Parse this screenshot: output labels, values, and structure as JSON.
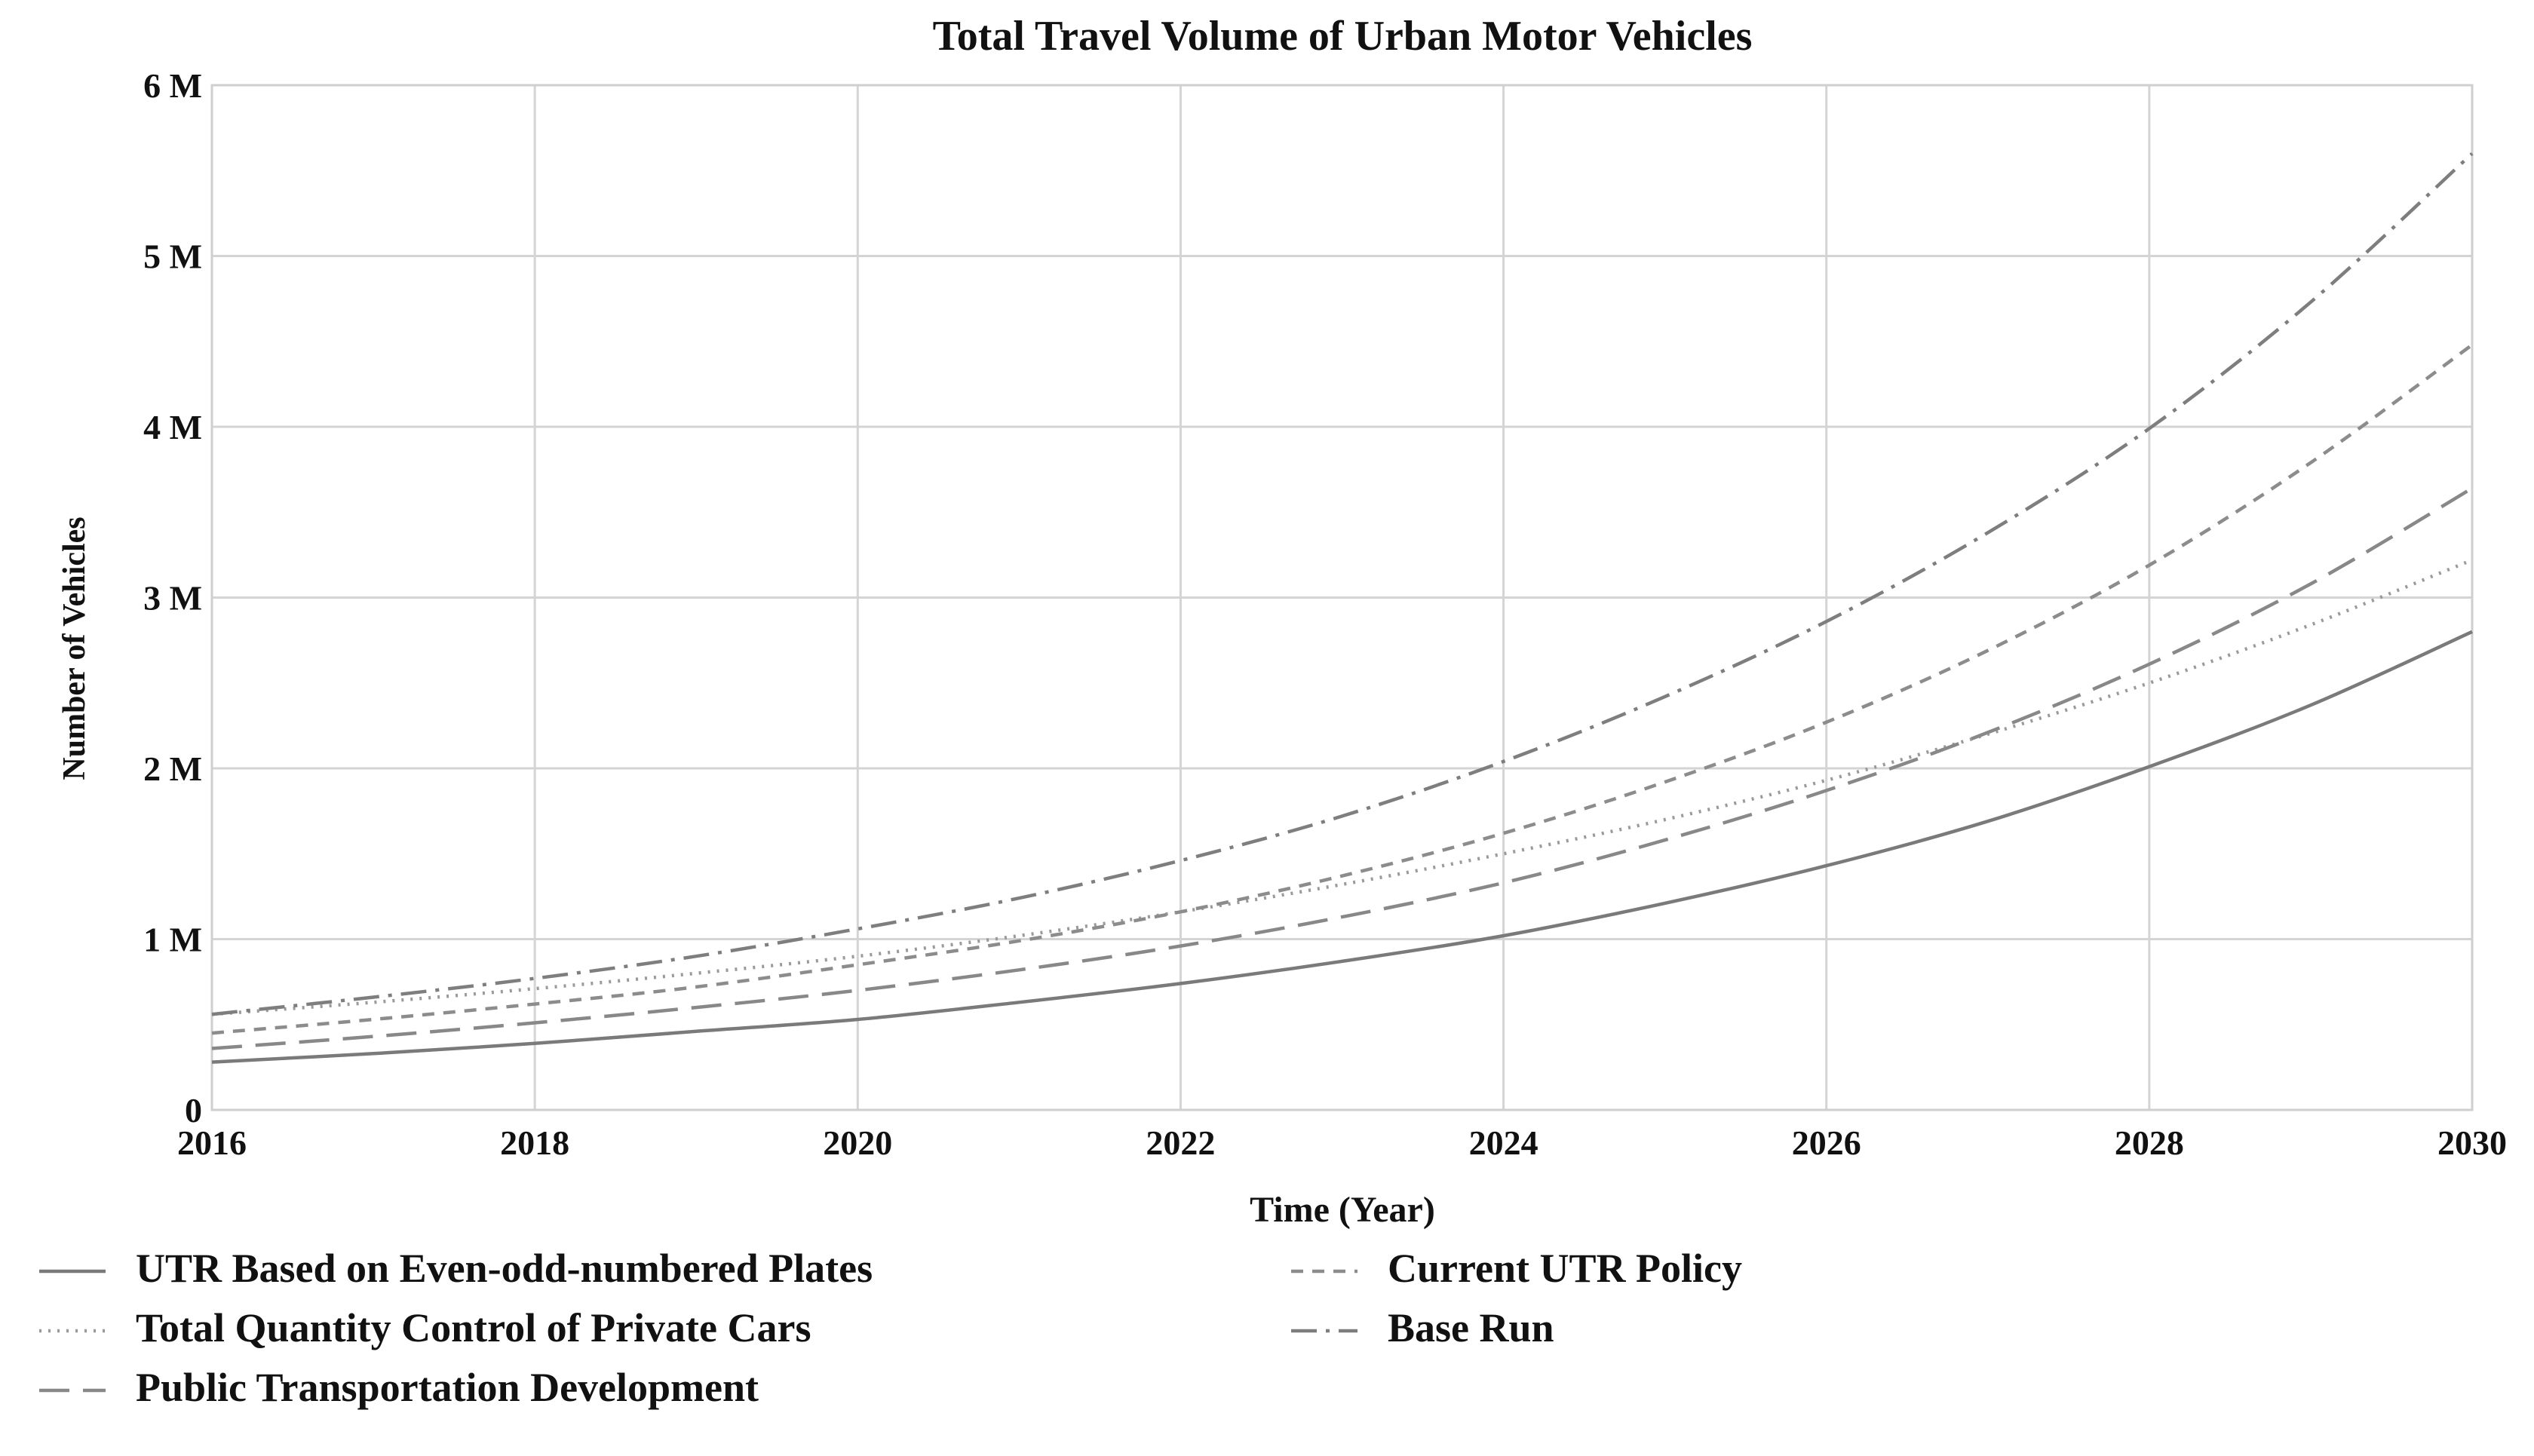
{
  "chart_data": {
    "type": "line",
    "title": "Total Travel Volume of Urban Motor Vehicles",
    "xlabel": "Time (Year)",
    "ylabel": "Number of Vehicles",
    "xlim": [
      2016,
      2030
    ],
    "ylim": [
      0,
      6
    ],
    "x_ticks": [
      2016,
      2018,
      2020,
      2022,
      2024,
      2026,
      2028,
      2030
    ],
    "y_ticks": [
      0,
      1,
      2,
      3,
      4,
      5,
      6
    ],
    "y_tick_labels": [
      "0",
      "1 M",
      "2 M",
      "3 M",
      "4 M",
      "5 M",
      "6 M"
    ],
    "grid": true,
    "x": [
      2016,
      2017,
      2018,
      2019,
      2020,
      2021,
      2022,
      2023,
      2024,
      2025,
      2026,
      2027,
      2028,
      2029,
      2030
    ],
    "series": [
      {
        "name": "UTR Based on Even-odd-numbered Plates",
        "style": "solid",
        "color": "#7a7a7a",
        "values": [
          0.28,
          0.33,
          0.39,
          0.46,
          0.53,
          0.63,
          0.74,
          0.87,
          1.02,
          1.21,
          1.43,
          1.69,
          2.01,
          2.37,
          2.8
        ]
      },
      {
        "name": "Total Quantity Control of Private Cars",
        "style": "dotted",
        "color": "#9a9a9a",
        "values": [
          0.56,
          0.63,
          0.71,
          0.8,
          0.9,
          1.02,
          1.16,
          1.32,
          1.5,
          1.7,
          1.93,
          2.2,
          2.5,
          2.84,
          3.22
        ]
      },
      {
        "name": "Public Transportation Development",
        "style": "long-dash",
        "color": "#888888",
        "values": [
          0.36,
          0.43,
          0.51,
          0.6,
          0.7,
          0.82,
          0.96,
          1.13,
          1.33,
          1.58,
          1.87,
          2.21,
          2.61,
          3.08,
          3.64
        ]
      },
      {
        "name": "Current UTR Policy",
        "style": "short-dash",
        "color": "#8c8c8c",
        "values": [
          0.45,
          0.53,
          0.62,
          0.72,
          0.85,
          0.99,
          1.16,
          1.37,
          1.62,
          1.92,
          2.27,
          2.69,
          3.19,
          3.79,
          4.48
        ]
      },
      {
        "name": "Base Run",
        "style": "dash-dot",
        "color": "#7e7e7e",
        "values": [
          0.56,
          0.66,
          0.77,
          0.9,
          1.06,
          1.24,
          1.46,
          1.72,
          2.04,
          2.42,
          2.86,
          3.38,
          3.99,
          4.73,
          5.6
        ]
      }
    ],
    "legend": {
      "placement": "bottom",
      "columns": [
        [
          "UTR Based on Even-odd-numbered Plates",
          "Total Quantity Control of Private Cars",
          "Public Transportation Development"
        ],
        [
          "Current UTR Policy",
          "Base Run"
        ]
      ]
    }
  }
}
